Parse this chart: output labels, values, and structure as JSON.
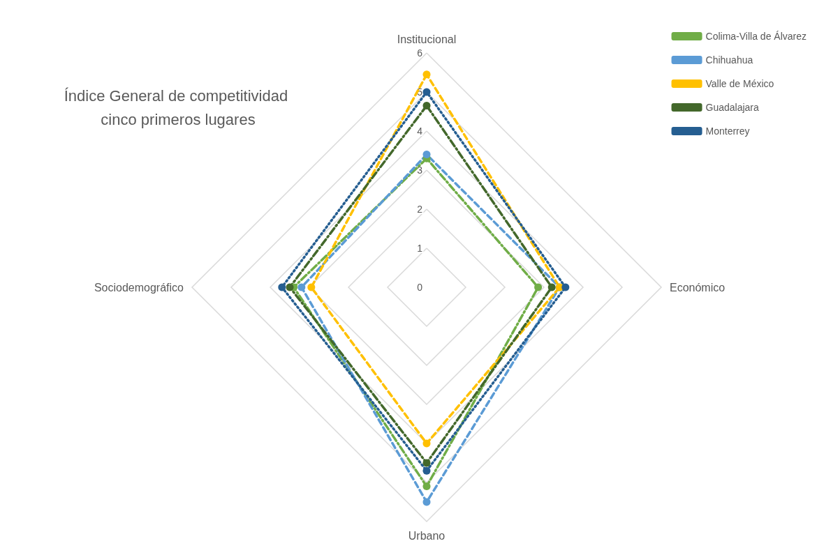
{
  "chart_data": {
    "type": "radar",
    "title": "Índice General de competitividad cinco primeros lugares",
    "categories": [
      "Institucional",
      "Económico",
      "Urbano",
      "Sociodemográfico"
    ],
    "ylim": [
      0,
      6
    ],
    "yticks": [
      0,
      1,
      2,
      3,
      4,
      5,
      6
    ],
    "grid": true,
    "legend": "top right",
    "marker": "circle",
    "series": [
      {
        "name": "Colima-Villa de Álvarez",
        "color": "#70ad47",
        "line_style": "dashdot",
        "values": [
          3.3,
          2.85,
          5.1,
          3.4
        ]
      },
      {
        "name": "Chihuahua",
        "color": "#5b9bd5",
        "line_style": "dashed",
        "values": [
          3.4,
          3.4,
          5.5,
          3.2
        ]
      },
      {
        "name": "Valle de México",
        "color": "#ffc000",
        "line_style": "dashed",
        "values": [
          5.45,
          3.4,
          4.0,
          2.95
        ]
      },
      {
        "name": "Guadalajara",
        "color": "#43682b",
        "line_style": "dashdot",
        "values": [
          4.65,
          3.2,
          4.5,
          3.5
        ]
      },
      {
        "name": "Monterrey",
        "color": "#255e91",
        "line_style": "dotted",
        "values": [
          5.0,
          3.55,
          4.7,
          3.7
        ]
      }
    ]
  }
}
